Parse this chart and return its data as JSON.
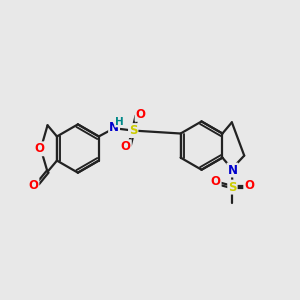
{
  "background_color": "#e8e8e8",
  "bond_color": "#222222",
  "bond_width": 1.6,
  "atom_colors": {
    "O": "#ff0000",
    "N": "#0000cc",
    "H": "#008888",
    "S": "#cccc00",
    "C": "#222222"
  },
  "figsize": [
    3.0,
    3.0
  ],
  "dpi": 100
}
